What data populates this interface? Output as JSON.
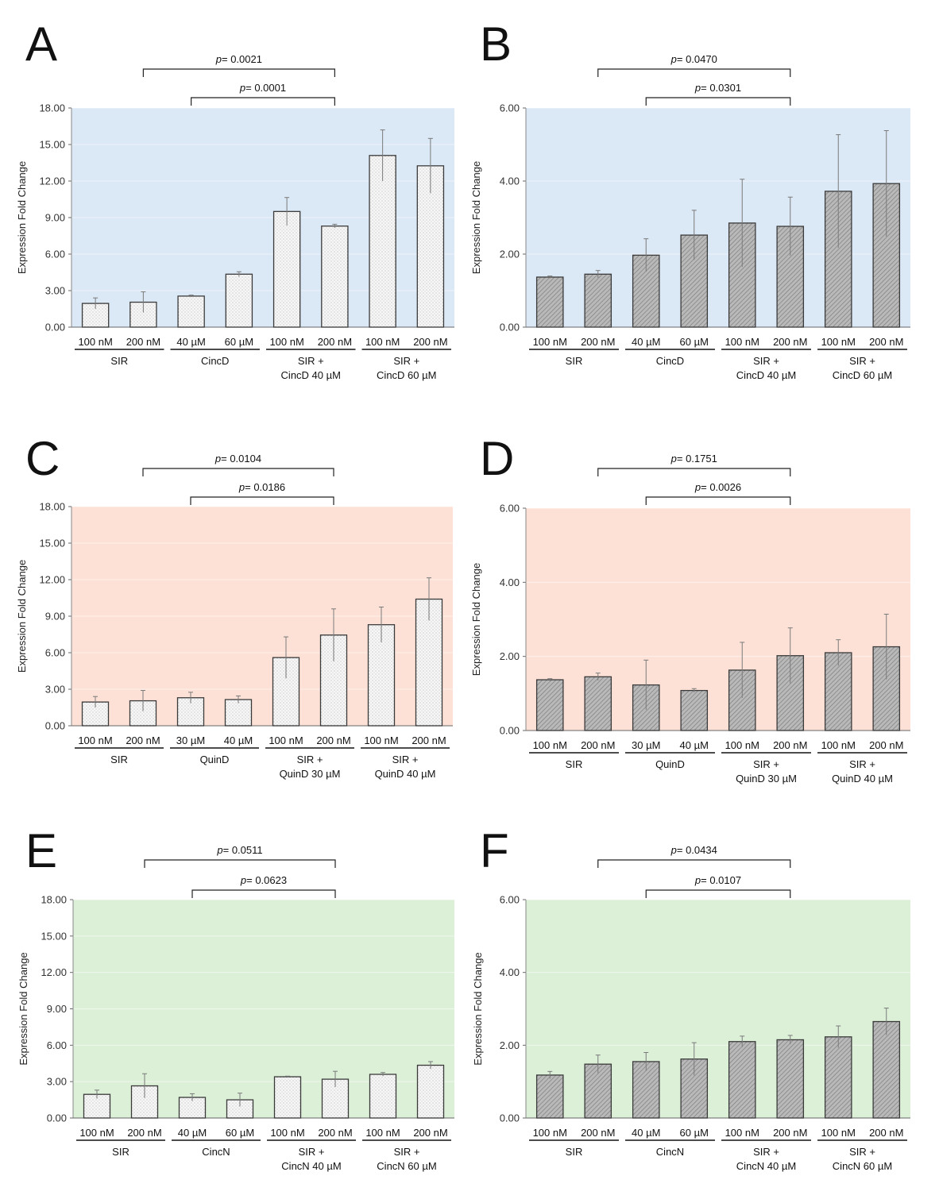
{
  "figure_title": "",
  "chart_data": [
    {
      "panel": "A",
      "type": "bar",
      "style": "light",
      "bg_color": "#dbe8f5",
      "ylabel": "Expression Fold Change",
      "ylim": [
        0,
        18
      ],
      "yticks": [
        "0.00",
        "3.00",
        "6.00",
        "9.00",
        "12.00",
        "15.00",
        "18.00"
      ],
      "categories": [
        "100 nM",
        "200 nM",
        "40 µM",
        "60 µM",
        "100 nM",
        "200 nM",
        "100 nM",
        "200 nM"
      ],
      "values": [
        1.95,
        2.05,
        2.55,
        4.35,
        9.5,
        8.3,
        14.1,
        13.25
      ],
      "errors": [
        0.45,
        0.85,
        0.08,
        0.2,
        1.15,
        0.15,
        2.1,
        2.25
      ],
      "groups": [
        {
          "lines": [
            "SIR"
          ],
          "span": [
            0,
            1
          ]
        },
        {
          "lines": [
            "CincD"
          ],
          "span": [
            2,
            3
          ]
        },
        {
          "lines": [
            "SIR +",
            "CincD 40 µM"
          ],
          "span": [
            4,
            5
          ]
        },
        {
          "lines": [
            "SIR +",
            "CincD 60 µM"
          ],
          "span": [
            6,
            7
          ]
        }
      ],
      "brackets": [
        {
          "italic": "p",
          "text": "= 0.0021",
          "from": 1,
          "to": 5
        },
        {
          "italic": "p",
          "text": "= 0.0001",
          "from": 2,
          "to": 5
        }
      ]
    },
    {
      "panel": "B",
      "type": "bar",
      "style": "dark",
      "bg_color": "#dbe8f5",
      "ylabel": "Expression Fold Change",
      "ylim": [
        0,
        6
      ],
      "yticks": [
        "0.00",
        "2.00",
        "4.00",
        "6.00"
      ],
      "categories": [
        "100 nM",
        "200 nM",
        "40 µM",
        "60 µM",
        "100 nM",
        "200 nM",
        "100 nM",
        "200 nM"
      ],
      "values": [
        1.37,
        1.45,
        1.97,
        2.52,
        2.85,
        2.76,
        3.72,
        3.93
      ],
      "errors": [
        0.03,
        0.1,
        0.45,
        0.68,
        1.2,
        0.8,
        1.55,
        1.45
      ],
      "groups": [
        {
          "lines": [
            "SIR"
          ],
          "span": [
            0,
            1
          ]
        },
        {
          "lines": [
            "CincD"
          ],
          "span": [
            2,
            3
          ]
        },
        {
          "lines": [
            "SIR +",
            "CincD 40 µM"
          ],
          "span": [
            4,
            5
          ]
        },
        {
          "lines": [
            "SIR +",
            "CincD 60 µM"
          ],
          "span": [
            6,
            7
          ]
        }
      ],
      "brackets": [
        {
          "italic": "p",
          "text": "= 0.0470",
          "from": 1,
          "to": 5
        },
        {
          "italic": "p",
          "text": "= 0.0301",
          "from": 2,
          "to": 5
        }
      ]
    },
    {
      "panel": "C",
      "type": "bar",
      "style": "light",
      "bg_color": "#fde1d6",
      "ylabel": "Expression Fold Change",
      "ylim": [
        0,
        18
      ],
      "yticks": [
        "0.00",
        "3.00",
        "6.00",
        "9.00",
        "12.00",
        "15.00",
        "18.00"
      ],
      "categories": [
        "100 nM",
        "200 nM",
        "30 µM",
        "40 µM",
        "100 nM",
        "200 nM",
        "100 nM",
        "200 nM"
      ],
      "values": [
        1.95,
        2.05,
        2.3,
        2.15,
        5.6,
        7.45,
        8.3,
        10.4
      ],
      "errors": [
        0.45,
        0.85,
        0.45,
        0.3,
        1.7,
        2.15,
        1.45,
        1.75
      ],
      "groups": [
        {
          "lines": [
            "SIR"
          ],
          "span": [
            0,
            1
          ]
        },
        {
          "lines": [
            "QuinD"
          ],
          "span": [
            2,
            3
          ]
        },
        {
          "lines": [
            "SIR +",
            "QuinD 30 µM"
          ],
          "span": [
            4,
            5
          ]
        },
        {
          "lines": [
            "SIR +",
            "QuinD 40 µM"
          ],
          "span": [
            6,
            7
          ]
        }
      ],
      "brackets": [
        {
          "italic": "p",
          "text": "= 0.0104",
          "from": 1,
          "to": 5
        },
        {
          "italic": "p",
          "text": "= 0.0186",
          "from": 2,
          "to": 5
        }
      ]
    },
    {
      "panel": "D",
      "type": "bar",
      "style": "dark",
      "bg_color": "#fde1d6",
      "ylabel": "Expression Fold Change",
      "ylim": [
        0,
        6
      ],
      "yticks": [
        "0.00",
        "2.00",
        "4.00",
        "6.00"
      ],
      "categories": [
        "100 nM",
        "200 nM",
        "30 µM",
        "40 µM",
        "100 nM",
        "200 nM",
        "100 nM",
        "200 nM"
      ],
      "values": [
        1.37,
        1.45,
        1.23,
        1.08,
        1.63,
        2.02,
        2.1,
        2.26
      ],
      "errors": [
        0.03,
        0.1,
        0.67,
        0.05,
        0.75,
        0.75,
        0.35,
        0.88
      ],
      "groups": [
        {
          "lines": [
            "SIR"
          ],
          "span": [
            0,
            1
          ]
        },
        {
          "lines": [
            "QuinD"
          ],
          "span": [
            2,
            3
          ]
        },
        {
          "lines": [
            "SIR +",
            "QuinD 30 µM"
          ],
          "span": [
            4,
            5
          ]
        },
        {
          "lines": [
            "SIR +",
            "QuinD 40 µM"
          ],
          "span": [
            6,
            7
          ]
        }
      ],
      "brackets": [
        {
          "italic": "p",
          "text": "= 0.1751",
          "from": 1,
          "to": 5
        },
        {
          "italic": "p",
          "text": "= 0.0026",
          "from": 2,
          "to": 5
        }
      ]
    },
    {
      "panel": "E",
      "type": "bar",
      "style": "light",
      "bg_color": "#dcefd7",
      "ylabel": "Expression Fold Change",
      "ylim": [
        0,
        18
      ],
      "yticks": [
        "0.00",
        "3.00",
        "6.00",
        "9.00",
        "12.00",
        "15.00",
        "18.00"
      ],
      "categories": [
        "100 nM",
        "200 nM",
        "40 µM",
        "60 µM",
        "100 nM",
        "200 nM",
        "100 nM",
        "200 nM"
      ],
      "values": [
        1.95,
        2.65,
        1.7,
        1.5,
        3.4,
        3.2,
        3.6,
        4.35
      ],
      "errors": [
        0.35,
        1.0,
        0.3,
        0.55,
        0.05,
        0.65,
        0.15,
        0.3
      ],
      "groups": [
        {
          "lines": [
            "SIR"
          ],
          "span": [
            0,
            1
          ]
        },
        {
          "lines": [
            "CincN"
          ],
          "span": [
            2,
            3
          ]
        },
        {
          "lines": [
            "SIR +",
            "CincN 40 µM"
          ],
          "span": [
            4,
            5
          ]
        },
        {
          "lines": [
            "SIR +",
            "CincN 60 µM"
          ],
          "span": [
            6,
            7
          ]
        }
      ],
      "brackets": [
        {
          "italic": "p",
          "text": "= 0.0511",
          "from": 1,
          "to": 5
        },
        {
          "italic": "p",
          "text": "= 0.0623",
          "from": 2,
          "to": 5
        }
      ]
    },
    {
      "panel": "F",
      "type": "bar",
      "style": "dark",
      "bg_color": "#dcefd7",
      "ylabel": "Expression Fold Change",
      "ylim": [
        0,
        6
      ],
      "yticks": [
        "0.00",
        "2.00",
        "4.00",
        "6.00"
      ],
      "categories": [
        "100 nM",
        "200 nM",
        "40 µM",
        "60 µM",
        "100 nM",
        "200 nM",
        "100 nM",
        "200 nM"
      ],
      "values": [
        1.18,
        1.48,
        1.55,
        1.62,
        2.1,
        2.15,
        2.23,
        2.65
      ],
      "errors": [
        0.1,
        0.25,
        0.25,
        0.45,
        0.15,
        0.12,
        0.3,
        0.37
      ],
      "groups": [
        {
          "lines": [
            "SIR"
          ],
          "span": [
            0,
            1
          ]
        },
        {
          "lines": [
            "CincN"
          ],
          "span": [
            2,
            3
          ]
        },
        {
          "lines": [
            "SIR +",
            "CincN 40 µM"
          ],
          "span": [
            4,
            5
          ]
        },
        {
          "lines": [
            "SIR +",
            "CincN 60 µM"
          ],
          "span": [
            6,
            7
          ]
        }
      ],
      "brackets": [
        {
          "italic": "p",
          "text": "= 0.0434",
          "from": 1,
          "to": 5
        },
        {
          "italic": "p",
          "text": "= 0.0107",
          "from": 2,
          "to": 5
        }
      ]
    }
  ]
}
